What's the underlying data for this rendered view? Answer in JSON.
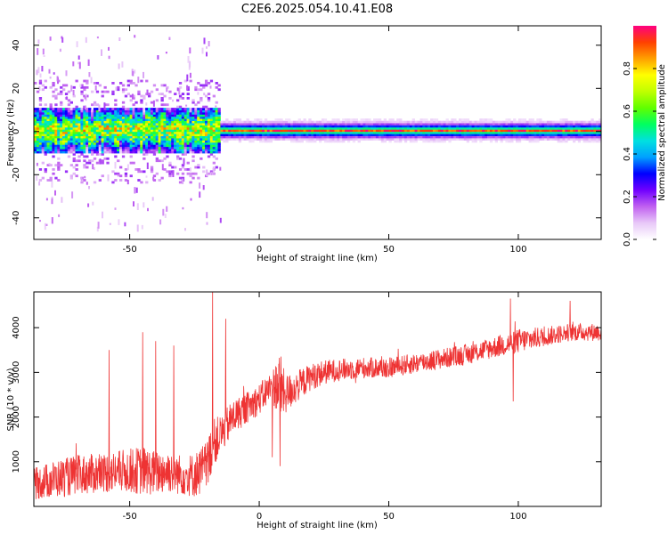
{
  "title": "C2E6.2025.054.10.41.E08",
  "chart_data": [
    {
      "type": "heatmap",
      "xlabel": "Height of straight line (km)",
      "ylabel": "Frequency (Hz)",
      "xlim": [
        -87,
        132
      ],
      "ylim": [
        -50,
        49
      ],
      "xticks": [
        -50,
        0,
        50,
        100
      ],
      "yticks": [
        -40,
        -20,
        0,
        20,
        40
      ],
      "grid": false,
      "colorbar": {
        "label": "Normalized spectral amplitude",
        "range": [
          0,
          1
        ],
        "ticks": [
          0.0,
          0.2,
          0.4,
          0.6,
          0.8
        ],
        "colormap": [
          "#ffffff",
          "#e8c8f8",
          "#c060f0",
          "#7000ff",
          "#0000ff",
          "#00a0ff",
          "#00e0e0",
          "#00ff60",
          "#60ff00",
          "#c0ff00",
          "#ffff00",
          "#ffa000",
          "#ff4000",
          "#ff0080"
        ]
      },
      "signal": {
        "center_frequency_hz": 0,
        "noisy_region_x_range": [
          -87,
          -15
        ],
        "noisy_spread_hz": [
          -20,
          20
        ],
        "stable_region_x_range": [
          -15,
          132
        ],
        "stable_band_hz": [
          -3,
          3
        ],
        "peak_amplitude": 1.0
      }
    },
    {
      "type": "line",
      "xlabel": "Height of straight line (km)",
      "ylabel": "SNR (10 * v/v)",
      "xlim": [
        -87,
        132
      ],
      "ylim": [
        0,
        4800
      ],
      "xticks": [
        -50,
        0,
        50,
        100
      ],
      "yticks": [
        1000,
        2000,
        3000,
        4000
      ],
      "grid": false,
      "series": [
        {
          "color": "#ee3333",
          "x": [
            -87,
            -80,
            -70,
            -60,
            -50,
            -45,
            -40,
            -35,
            -30,
            -25,
            -20,
            -18,
            -15,
            -10,
            -5,
            0,
            5,
            8,
            10,
            15,
            20,
            25,
            30,
            40,
            50,
            60,
            70,
            80,
            90,
            100,
            110,
            120,
            132
          ],
          "mid": [
            500,
            600,
            700,
            750,
            800,
            800,
            750,
            800,
            700,
            700,
            900,
            1400,
            1600,
            2000,
            2200,
            2400,
            2700,
            2700,
            2500,
            2700,
            2900,
            3000,
            3050,
            3100,
            3100,
            3200,
            3300,
            3400,
            3550,
            3700,
            3800,
            3900,
            3900
          ],
          "amp": [
            350,
            420,
            450,
            450,
            500,
            550,
            500,
            500,
            450,
            500,
            600,
            550,
            450,
            400,
            350,
            350,
            350,
            800,
            450,
            350,
            300,
            280,
            250,
            240,
            230,
            230,
            230,
            230,
            240,
            280,
            220,
            200,
            200
          ],
          "spikes": [
            [
              -58,
              3500
            ],
            [
              -45,
              3900
            ],
            [
              -40,
              3700
            ],
            [
              -33,
              3600
            ],
            [
              -18,
              4800
            ],
            [
              -13,
              4200
            ],
            [
              5,
              1100
            ],
            [
              8,
              900
            ],
            [
              97,
              4650
            ],
            [
              98,
              2350
            ],
            [
              120,
              4600
            ]
          ]
        }
      ]
    }
  ]
}
